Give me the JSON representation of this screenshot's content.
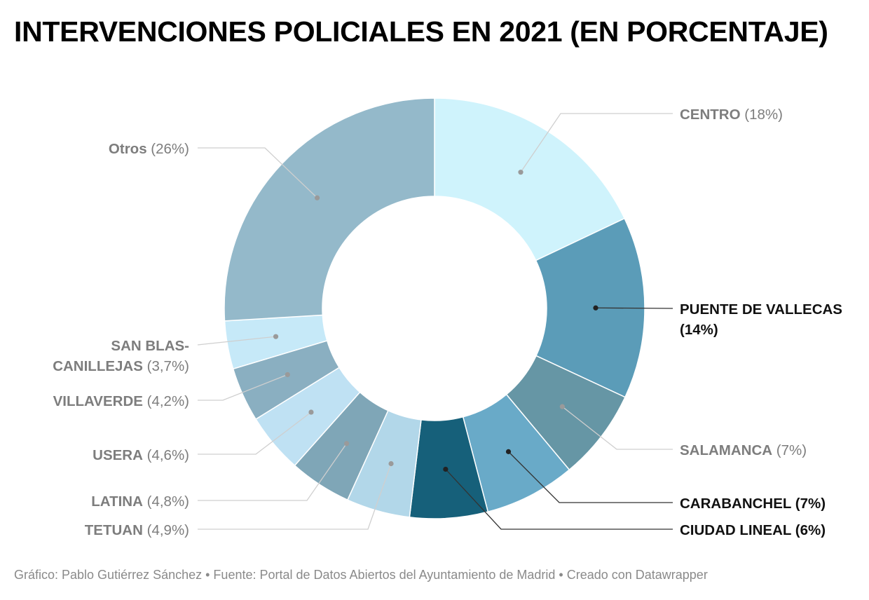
{
  "title": "INTERVENCIONES POLICIALES EN 2021 (EN PORCENTAJE)",
  "footer": "Gráfico: Pablo Gutiérrez Sánchez • Fuente: Portal de Datos Abiertos del Ayuntamiento de Madrid • Creado con Datawrapper",
  "chart_data": {
    "type": "pie",
    "subtype": "donut",
    "unit": "%",
    "slices": [
      {
        "name": "CENTRO",
        "value": 18,
        "value_label": "(18%)",
        "color": "#cff3fc",
        "emphasis": false
      },
      {
        "name": "PUENTE DE VALLECAS",
        "value": 14,
        "value_label": "(14%)",
        "color": "#5b9cb8",
        "emphasis": true
      },
      {
        "name": "SALAMANCA",
        "value": 7,
        "value_label": "(7%)",
        "color": "#6696a5",
        "emphasis": false
      },
      {
        "name": "CARABANCHEL",
        "value": 7,
        "value_label": "(7%)",
        "color": "#69aac8",
        "emphasis": true
      },
      {
        "name": "CIUDAD LINEAL",
        "value": 6,
        "value_label": "(6%)",
        "color": "#16607a",
        "emphasis": true
      },
      {
        "name": "TETUAN",
        "value": 4.9,
        "value_label": "(4,9%)",
        "color": "#b2d7e9",
        "emphasis": false
      },
      {
        "name": "LATINA",
        "value": 4.8,
        "value_label": "(4,8%)",
        "color": "#7fa6b7",
        "emphasis": false
      },
      {
        "name": "USERA",
        "value": 4.6,
        "value_label": "(4,6%)",
        "color": "#bfe1f3",
        "emphasis": false
      },
      {
        "name": "VILLAVERDE",
        "value": 4.2,
        "value_label": "(4,2%)",
        "color": "#8aafc1",
        "emphasis": false
      },
      {
        "name": "SAN BLAS-CANILLEJAS",
        "value": 3.7,
        "value_label": "(3,7%)",
        "color": "#c6e9f8",
        "emphasis": false
      },
      {
        "name": "Otros",
        "value": 26,
        "value_label": "(26%)",
        "color": "#94b9ca",
        "emphasis": false
      }
    ]
  }
}
